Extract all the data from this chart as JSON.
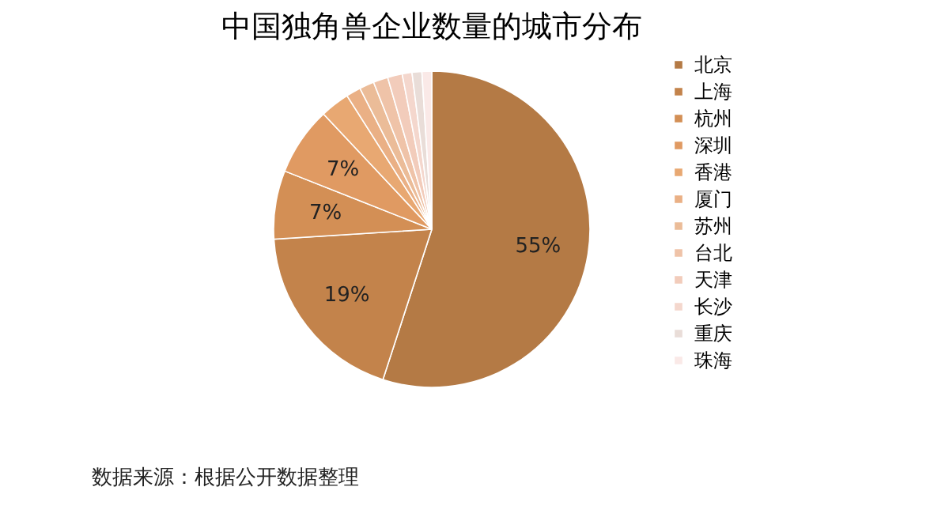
{
  "chart_data": {
    "type": "pie",
    "title": "中国独角兽企业数量的城市分布",
    "categories": [
      "北京",
      "上海",
      "杭州",
      "深圳",
      "香港",
      "厦门",
      "苏州",
      "台北",
      "天津",
      "长沙",
      "重庆",
      "珠海"
    ],
    "values": [
      55,
      19,
      7,
      7,
      3,
      1.5,
      1.5,
      1.5,
      1.5,
      1,
      1,
      1
    ],
    "colors": [
      "#b47a45",
      "#c3834b",
      "#d38f55",
      "#e09a62",
      "#e8a872",
      "#eab085",
      "#ebbc98",
      "#efc3a8",
      "#f2ccbb",
      "#f4d7cd",
      "#e9ddd8",
      "#fae9e7"
    ],
    "value_labels": [
      "55%",
      "19%",
      "7%",
      "7%",
      null,
      null,
      null,
      null,
      null,
      null,
      null,
      null
    ],
    "legend": "right",
    "annotations": [
      "数据来源：根据公开数据整理"
    ]
  }
}
